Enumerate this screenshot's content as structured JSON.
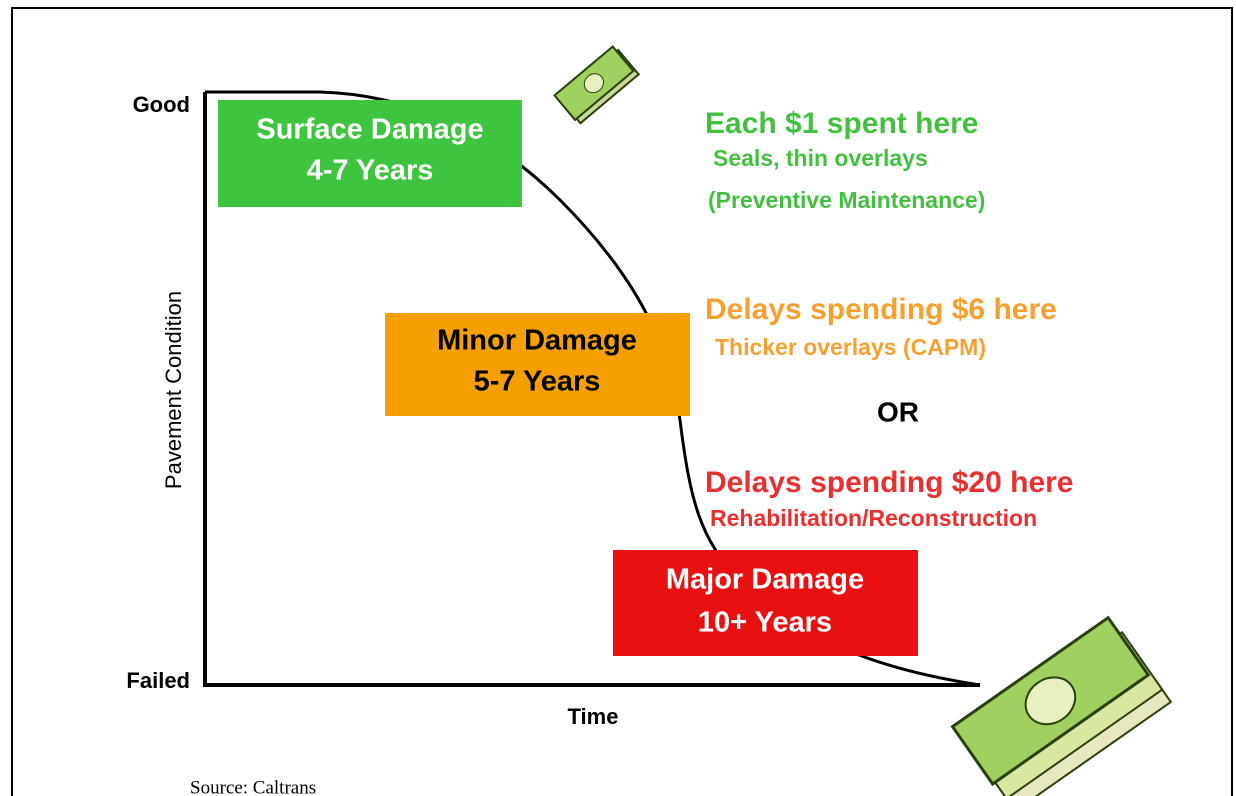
{
  "axes": {
    "y_top": "Good",
    "y_bottom": "Failed",
    "y_label": "Pavement Condition",
    "x_label": "Time"
  },
  "stages": [
    {
      "title": "Surface Damage",
      "duration": "4-7 Years"
    },
    {
      "title": "Minor Damage",
      "duration": "5-7 Years"
    },
    {
      "title": "Major Damage",
      "duration": "10+ Years"
    }
  ],
  "annotations": [
    {
      "headline": "Each $1 spent here",
      "details": [
        "Seals, thin overlays",
        "(Preventive Maintenance)"
      ]
    },
    {
      "headline": "Delays spending $6 here",
      "details": [
        "Thicker overlays (CAPM)"
      ]
    },
    {
      "headline": "Delays spending $20 here",
      "details": [
        "Rehabilitation/Reconstruction"
      ]
    }
  ],
  "connector": "OR",
  "source": "Source: Caltrans"
}
